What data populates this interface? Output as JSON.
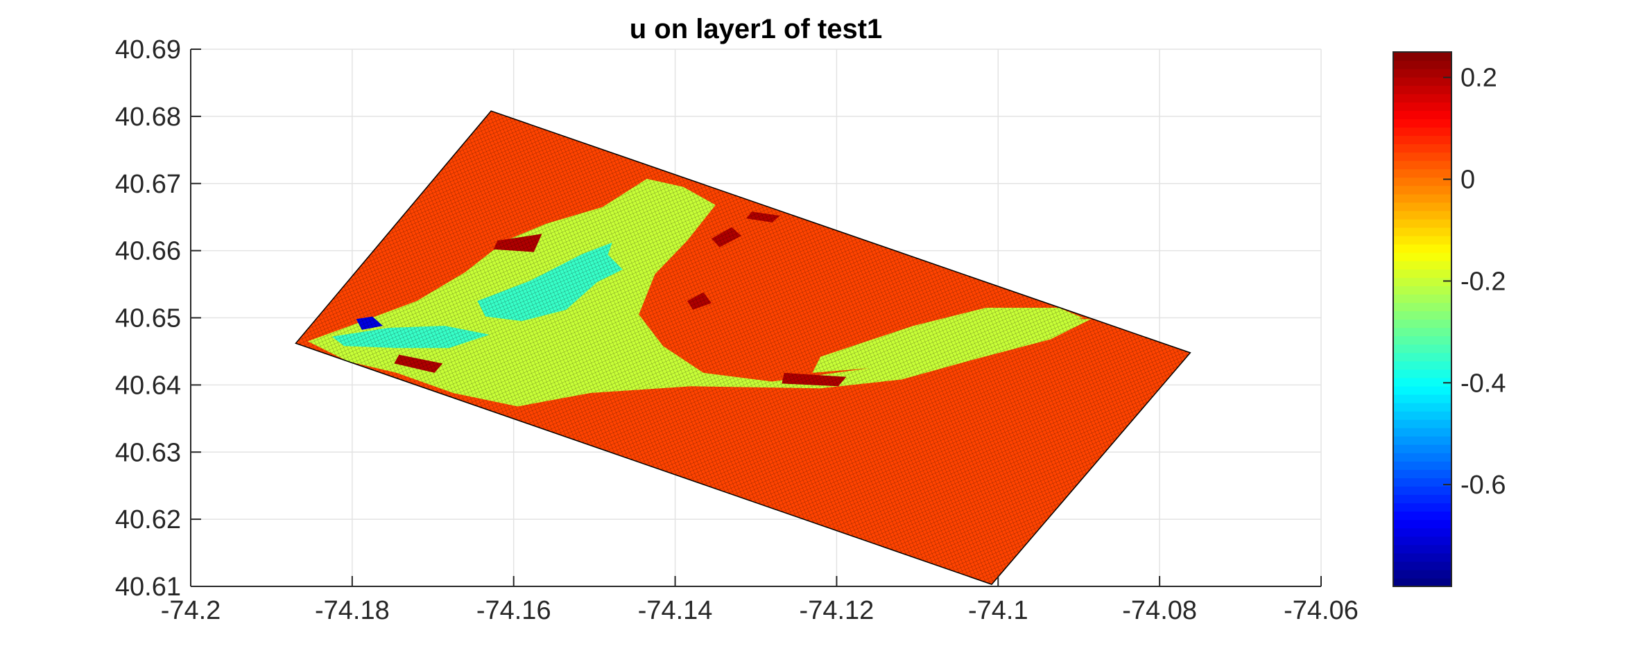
{
  "chart_data": {
    "type": "heatmap",
    "title": "u on layer1 of test1",
    "xlabel": "",
    "ylabel": "",
    "xlim": [
      -74.2,
      -74.06
    ],
    "ylim": [
      40.61,
      40.69
    ],
    "xticks": [
      -74.2,
      -74.18,
      -74.16,
      -74.14,
      -74.12,
      -74.1,
      -74.08,
      -74.06
    ],
    "xtick_labels": [
      "-74.2",
      "-74.18",
      "-74.16",
      "-74.14",
      "-74.12",
      "-74.1",
      "-74.08",
      "-74.06"
    ],
    "yticks": [
      40.61,
      40.62,
      40.63,
      40.64,
      40.65,
      40.66,
      40.67,
      40.68,
      40.69
    ],
    "ytick_labels": [
      "40.61",
      "40.62",
      "40.63",
      "40.64",
      "40.65",
      "40.66",
      "40.67",
      "40.68",
      "40.69"
    ],
    "grid": true,
    "colormap": "jet",
    "colorbar": {
      "placement": "right",
      "clim": [
        -0.8,
        0.25
      ],
      "ticks": [
        0.2,
        0,
        -0.2,
        -0.4,
        -0.6
      ],
      "tick_labels": [
        "0.2",
        "0",
        "-0.2",
        "-0.4",
        "-0.6"
      ]
    },
    "domain_corners": {
      "west": [
        -74.187,
        40.6462
      ],
      "north": [
        -74.1628,
        40.6808
      ],
      "east": [
        -74.0762,
        40.6448
      ],
      "south": [
        -74.1008,
        40.6103
      ]
    },
    "background_value": 0.05,
    "regions": [
      {
        "value": -0.2,
        "polygon": [
          [
            -74.1855,
            40.6465
          ],
          [
            -74.178,
            40.6498
          ],
          [
            -74.172,
            40.6525
          ],
          [
            -74.166,
            40.6568
          ],
          [
            -74.161,
            40.6615
          ],
          [
            -74.156,
            40.664
          ],
          [
            -74.149,
            40.6665
          ],
          [
            -74.1435,
            40.6707
          ],
          [
            -74.139,
            40.6695
          ],
          [
            -74.135,
            40.6668
          ],
          [
            -74.1385,
            40.6615
          ],
          [
            -74.1425,
            40.6565
          ],
          [
            -74.1445,
            40.6505
          ],
          [
            -74.1415,
            40.6458
          ],
          [
            -74.1365,
            40.6418
          ],
          [
            -74.128,
            40.6405
          ],
          [
            -74.116,
            40.6425
          ],
          [
            -74.1055,
            40.6468
          ],
          [
            -74.0955,
            40.6498
          ],
          [
            -74.0885,
            40.6498
          ],
          [
            -74.0935,
            40.6468
          ],
          [
            -74.103,
            40.6438
          ],
          [
            -74.112,
            40.6408
          ],
          [
            -74.122,
            40.6395
          ],
          [
            -74.138,
            40.6398
          ],
          [
            -74.1505,
            40.6388
          ],
          [
            -74.1595,
            40.6368
          ],
          [
            -74.1675,
            40.6388
          ],
          [
            -74.1745,
            40.6418
          ],
          [
            -74.1805,
            40.6435
          ]
        ]
      },
      {
        "value": -0.2,
        "polygon": [
          [
            -74.122,
            40.6442
          ],
          [
            -74.1105,
            40.6488
          ],
          [
            -74.1015,
            40.6515
          ],
          [
            -74.0925,
            40.6515
          ],
          [
            -74.0895,
            40.65
          ],
          [
            -74.097,
            40.6475
          ],
          [
            -74.106,
            40.6448
          ],
          [
            -74.116,
            40.6425
          ],
          [
            -74.123,
            40.6418
          ]
        ]
      },
      {
        "value": -0.35,
        "polygon": [
          [
            -74.1825,
            40.6472
          ],
          [
            -74.1755,
            40.6485
          ],
          [
            -74.1685,
            40.6488
          ],
          [
            -74.163,
            40.6475
          ],
          [
            -74.168,
            40.6455
          ],
          [
            -74.1745,
            40.6455
          ],
          [
            -74.181,
            40.6458
          ]
        ]
      },
      {
        "value": -0.35,
        "polygon": [
          [
            -74.1645,
            40.6525
          ],
          [
            -74.158,
            40.6555
          ],
          [
            -74.1515,
            40.6595
          ],
          [
            -74.1478,
            40.6612
          ],
          [
            -74.1495,
            40.6555
          ],
          [
            -74.1535,
            40.6512
          ],
          [
            -74.159,
            40.6495
          ],
          [
            -74.1635,
            40.6502
          ]
        ]
      },
      {
        "value": -0.35,
        "polygon": [
          [
            -74.1535,
            40.6568
          ],
          [
            -74.149,
            40.6602
          ],
          [
            -74.1465,
            40.6572
          ],
          [
            -74.1505,
            40.6548
          ]
        ]
      },
      {
        "value": -0.7,
        "polygon": [
          [
            -74.1795,
            40.6498
          ],
          [
            -74.1775,
            40.6502
          ],
          [
            -74.1762,
            40.6488
          ],
          [
            -74.1788,
            40.6482
          ]
        ]
      },
      {
        "value": 0.2,
        "polygon": [
          [
            -74.1305,
            40.6658
          ],
          [
            -74.127,
            40.6652
          ],
          [
            -74.128,
            40.6642
          ],
          [
            -74.1312,
            40.6648
          ]
        ]
      },
      {
        "value": 0.2,
        "polygon": [
          [
            -74.162,
            40.6615
          ],
          [
            -74.1565,
            40.6625
          ],
          [
            -74.1575,
            40.6598
          ],
          [
            -74.1625,
            40.6602
          ]
        ]
      },
      {
        "value": 0.2,
        "polygon": [
          [
            -74.1742,
            40.6445
          ],
          [
            -74.1688,
            40.6432
          ],
          [
            -74.1698,
            40.6418
          ],
          [
            -74.1748,
            40.6432
          ]
        ]
      },
      {
        "value": 0.2,
        "polygon": [
          [
            -74.1265,
            40.6418
          ],
          [
            -74.1188,
            40.6412
          ],
          [
            -74.1198,
            40.6398
          ],
          [
            -74.1268,
            40.6402
          ]
        ]
      },
      {
        "value": 0.2,
        "polygon": [
          [
            -74.1355,
            40.6618
          ],
          [
            -74.133,
            40.6635
          ],
          [
            -74.1318,
            40.6622
          ],
          [
            -74.1345,
            40.6605
          ]
        ]
      },
      {
        "value": 0.2,
        "polygon": [
          [
            -74.1385,
            40.6525
          ],
          [
            -74.1365,
            40.6538
          ],
          [
            -74.1355,
            40.6522
          ],
          [
            -74.1378,
            40.6512
          ]
        ]
      }
    ]
  }
}
